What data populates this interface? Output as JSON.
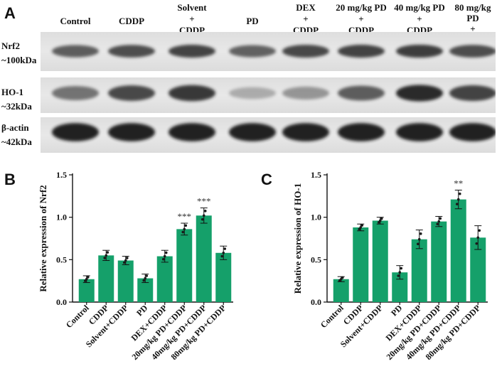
{
  "panels": {
    "a": "A",
    "b": "B",
    "c": "C"
  },
  "blot": {
    "lanes": [
      "Control",
      "CDDP",
      "Solvent\n+\nCDDP",
      "PD",
      "DEX\n+\nCDDP",
      "20 mg/kg PD\n+\nCDDP",
      "40 mg/kg PD\n+\nCDDP",
      "80 mg/kg\nPD\n+\nCDDP"
    ],
    "rows": [
      {
        "name": "Nrf2",
        "size": "~100kDa",
        "intensity": [
          0.72,
          0.78,
          0.82,
          0.7,
          0.8,
          0.82,
          0.84,
          0.78
        ]
      },
      {
        "name": "HO-1",
        "size": "~32kDa",
        "intensity": [
          0.62,
          0.8,
          0.86,
          0.32,
          0.45,
          0.72,
          0.92,
          0.82
        ]
      },
      {
        "name": "β-actin",
        "size": "~42kDa",
        "intensity": [
          0.95,
          0.95,
          0.95,
          0.95,
          0.95,
          0.95,
          0.95,
          0.95
        ]
      }
    ]
  },
  "chart_data": [
    {
      "type": "bar",
      "panel": "B",
      "ylabel": "Relative expression of Nrf2",
      "categories": [
        "Control",
        "CDDP",
        "Solvent+CDDP",
        "PD",
        "DEX+CDDP",
        "20mg/kg PD+CDDP",
        "40mg/kg PD+CDDP",
        "80mg/kg PD+CDDP"
      ],
      "values": [
        0.27,
        0.55,
        0.49,
        0.28,
        0.54,
        0.86,
        1.02,
        0.58
      ],
      "errors": [
        0.04,
        0.06,
        0.05,
        0.05,
        0.07,
        0.07,
        0.09,
        0.08
      ],
      "significance": [
        "",
        "",
        "",
        "",
        "",
        "***",
        "***",
        ""
      ],
      "ylim": [
        0,
        1.5
      ],
      "yticks": [
        "0.0",
        "0.5",
        "1.0",
        "1.5"
      ],
      "color": "#15a06a"
    },
    {
      "type": "bar",
      "panel": "C",
      "ylabel": "Relative expression of HO-1",
      "categories": [
        "Control",
        "CDDP",
        "Solvent+CDDP",
        "PD",
        "DEX+CDDP",
        "20mg/kg PD+CDDP",
        "40mg/kg PD+CDDP",
        "80mg/kg PD+CDDP"
      ],
      "values": [
        0.27,
        0.88,
        0.96,
        0.35,
        0.74,
        0.95,
        1.21,
        0.76
      ],
      "errors": [
        0.03,
        0.04,
        0.04,
        0.08,
        0.11,
        0.06,
        0.11,
        0.14
      ],
      "significance": [
        "",
        "",
        "",
        "",
        "",
        "",
        "**",
        ""
      ],
      "ylim": [
        0,
        1.5
      ],
      "yticks": [
        "0.0",
        "0.5",
        "1.0",
        "1.5"
      ],
      "color": "#15a06a"
    }
  ]
}
